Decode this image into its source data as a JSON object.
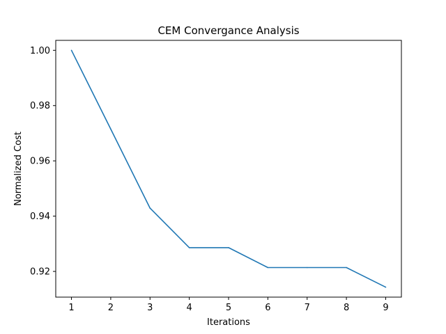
{
  "chart_data": {
    "type": "line",
    "title": "CEM Convergance Analysis",
    "xlabel": "Iterations",
    "ylabel": "Normalized Cost",
    "x": [
      1,
      2,
      3,
      4,
      5,
      6,
      7,
      8,
      9
    ],
    "series": [
      {
        "values": [
          1.0,
          0.9715,
          0.9429,
          0.9286,
          0.9286,
          0.9214,
          0.9214,
          0.9214,
          0.9143
        ],
        "color": "#1f77b4"
      }
    ],
    "xlim": [
      0.6,
      9.4
    ],
    "ylim": [
      0.9107,
      1.0036
    ],
    "xticks": [
      1,
      2,
      3,
      4,
      5,
      6,
      7,
      8,
      9
    ],
    "yticks": [
      0.92,
      0.94,
      0.96,
      0.98,
      1.0
    ],
    "ytick_labels": [
      "0.92",
      "0.94",
      "0.96",
      "0.98",
      "1.00"
    ],
    "grid": false,
    "legend": false
  }
}
